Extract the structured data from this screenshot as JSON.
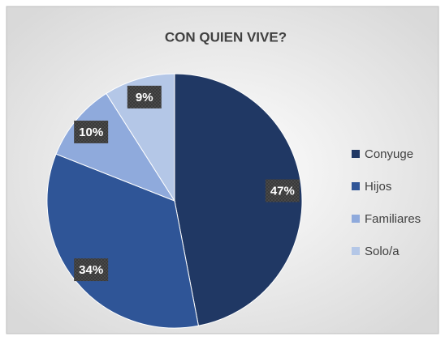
{
  "chart_data": {
    "type": "pie",
    "title": "CON QUIEN VIVE?",
    "categories": [
      "Conyuge",
      "Hijos",
      "Familiares",
      "Solo/a"
    ],
    "values": [
      47,
      34,
      10,
      9
    ],
    "value_labels": [
      "47%",
      "34%",
      "10%",
      "9%"
    ],
    "colors": [
      "#203864",
      "#2f5597",
      "#8faadc",
      "#b4c7e7"
    ],
    "legend": "right"
  }
}
